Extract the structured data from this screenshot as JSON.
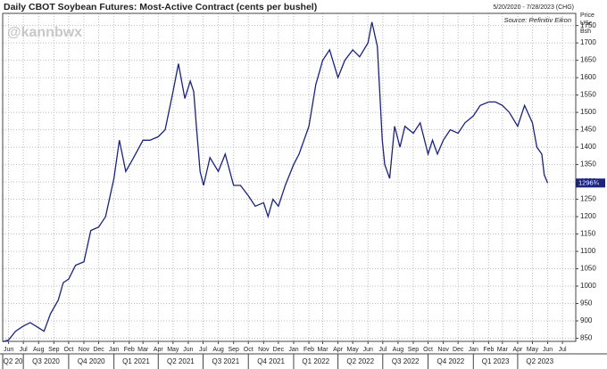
{
  "chart_data": {
    "type": "line",
    "title": "Daily CBOT Soybean Futures: Most-Active Contract (cents per bushel)",
    "subtitle": "5/20/2020 - 7/28/2023 (CHG)",
    "source": "Source: Refinitiv Eikon",
    "watermark": "@kannbwx",
    "y_axis_label": [
      "Price",
      "USc",
      "Bsh"
    ],
    "x": [
      "2020-05-20",
      "2020-06-01",
      "2020-06-15",
      "2020-07-01",
      "2020-07-15",
      "2020-08-01",
      "2020-08-12",
      "2020-08-25",
      "2020-09-10",
      "2020-09-20",
      "2020-10-01",
      "2020-10-15",
      "2020-11-01",
      "2020-11-15",
      "2020-12-01",
      "2020-12-15",
      "2021-01-01",
      "2021-01-12",
      "2021-01-25",
      "2021-02-10",
      "2021-03-01",
      "2021-03-15",
      "2021-04-01",
      "2021-04-15",
      "2021-05-01",
      "2021-05-12",
      "2021-05-25",
      "2021-06-05",
      "2021-06-12",
      "2021-06-18",
      "2021-06-25",
      "2021-07-02",
      "2021-07-15",
      "2021-08-01",
      "2021-08-15",
      "2021-09-01",
      "2021-09-15",
      "2021-10-01",
      "2021-10-15",
      "2021-11-01",
      "2021-11-10",
      "2021-11-20",
      "2021-12-01",
      "2021-12-15",
      "2022-01-01",
      "2022-01-12",
      "2022-02-01",
      "2022-02-15",
      "2022-03-01",
      "2022-03-15",
      "2022-04-01",
      "2022-04-15",
      "2022-05-01",
      "2022-05-15",
      "2022-06-01",
      "2022-06-09",
      "2022-06-20",
      "2022-06-30",
      "2022-07-05",
      "2022-07-15",
      "2022-07-25",
      "2022-08-05",
      "2022-08-15",
      "2022-09-01",
      "2022-09-15",
      "2022-10-01",
      "2022-10-10",
      "2022-10-20",
      "2022-11-01",
      "2022-11-15",
      "2022-12-01",
      "2022-12-15",
      "2023-01-01",
      "2023-01-15",
      "2023-02-01",
      "2023-02-15",
      "2023-03-01",
      "2023-03-15",
      "2023-04-01",
      "2023-04-15",
      "2023-05-01",
      "2023-05-10",
      "2023-05-20",
      "2023-05-25",
      "2023-06-01"
    ],
    "series": [
      {
        "color": "#1a237e",
        "values": [
          840,
          845,
          870,
          885,
          895,
          880,
          870,
          920,
          960,
          1010,
          1020,
          1060,
          1070,
          1160,
          1170,
          1200,
          1310,
          1420,
          1330,
          1370,
          1420,
          1420,
          1430,
          1450,
          1560,
          1640,
          1540,
          1590,
          1560,
          1450,
          1330,
          1290,
          1370,
          1330,
          1380,
          1290,
          1290,
          1260,
          1230,
          1240,
          1200,
          1250,
          1230,
          1290,
          1350,
          1380,
          1460,
          1580,
          1650,
          1680,
          1600,
          1650,
          1680,
          1660,
          1700,
          1760,
          1690,
          1420,
          1350,
          1310,
          1460,
          1400,
          1460,
          1440,
          1470,
          1380,
          1420,
          1380,
          1420,
          1450,
          1440,
          1470,
          1490,
          1520,
          1530,
          1530,
          1520,
          1500,
          1460,
          1520,
          1470,
          1400,
          1380,
          1320,
          1296.75
        ]
      }
    ],
    "last_value": {
      "value": 1296.75,
      "label": "1296¾"
    },
    "xlim": [
      "2020-05-20",
      "2023-07-28"
    ],
    "xticks": [
      {
        "value": "2020-06-01",
        "label": "Jun"
      },
      {
        "value": "2020-07-01",
        "label": "Jul"
      },
      {
        "value": "2020-08-01",
        "label": "Aug"
      },
      {
        "value": "2020-09-01",
        "label": "Sep"
      },
      {
        "value": "2020-10-01",
        "label": "Oct"
      },
      {
        "value": "2020-11-01",
        "label": "Nov"
      },
      {
        "value": "2020-12-01",
        "label": "Dec"
      },
      {
        "value": "2021-01-01",
        "label": "Jan"
      },
      {
        "value": "2021-02-01",
        "label": "Feb"
      },
      {
        "value": "2021-03-01",
        "label": "Mar"
      },
      {
        "value": "2021-04-01",
        "label": "Apr"
      },
      {
        "value": "2021-05-01",
        "label": "May"
      },
      {
        "value": "2021-06-01",
        "label": "Jun"
      },
      {
        "value": "2021-07-01",
        "label": "Jul"
      },
      {
        "value": "2021-08-01",
        "label": "Aug"
      },
      {
        "value": "2021-09-01",
        "label": "Sep"
      },
      {
        "value": "2021-10-01",
        "label": "Oct"
      },
      {
        "value": "2021-11-01",
        "label": "Nov"
      },
      {
        "value": "2021-12-01",
        "label": "Dec"
      },
      {
        "value": "2022-01-01",
        "label": "Jan"
      },
      {
        "value": "2022-02-01",
        "label": "Feb"
      },
      {
        "value": "2022-03-01",
        "label": "Mar"
      },
      {
        "value": "2022-04-01",
        "label": "Apr"
      },
      {
        "value": "2022-05-01",
        "label": "May"
      },
      {
        "value": "2022-06-01",
        "label": "Jun"
      },
      {
        "value": "2022-07-01",
        "label": "Jul"
      },
      {
        "value": "2022-08-01",
        "label": "Aug"
      },
      {
        "value": "2022-09-01",
        "label": "Sep"
      },
      {
        "value": "2022-10-01",
        "label": "Oct"
      },
      {
        "value": "2022-11-01",
        "label": "Nov"
      },
      {
        "value": "2022-12-01",
        "label": "Dec"
      },
      {
        "value": "2023-01-01",
        "label": "Jan"
      },
      {
        "value": "2023-02-01",
        "label": "Feb"
      },
      {
        "value": "2023-03-01",
        "label": "Mar"
      },
      {
        "value": "2023-04-01",
        "label": "Apr"
      },
      {
        "value": "2023-05-01",
        "label": "May"
      },
      {
        "value": "2023-06-01",
        "label": "Jun"
      },
      {
        "value": "2023-07-01",
        "label": "Jul"
      }
    ],
    "quarters": [
      {
        "value": "2020-04-01",
        "label": "Q2 20"
      },
      {
        "value": "2020-07-01",
        "label": "Q3 2020"
      },
      {
        "value": "2020-10-01",
        "label": "Q4 2020"
      },
      {
        "value": "2021-01-01",
        "label": "Q1 2021"
      },
      {
        "value": "2021-04-01",
        "label": "Q2 2021"
      },
      {
        "value": "2021-07-01",
        "label": "Q3 2021"
      },
      {
        "value": "2021-10-01",
        "label": "Q4 2021"
      },
      {
        "value": "2022-01-01",
        "label": "Q1 2022"
      },
      {
        "value": "2022-04-01",
        "label": "Q2 2022"
      },
      {
        "value": "2022-07-01",
        "label": "Q3 2022"
      },
      {
        "value": "2022-10-01",
        "label": "Q4 2022"
      },
      {
        "value": "2023-01-01",
        "label": "Q1 2023"
      },
      {
        "value": "2023-04-01",
        "label": "Q2 2023"
      }
    ],
    "ylim": [
      841,
      1785
    ],
    "yticks": [
      850,
      900,
      950,
      1000,
      1050,
      1100,
      1150,
      1200,
      1250,
      1300,
      1350,
      1400,
      1450,
      1500,
      1550,
      1600,
      1650,
      1700,
      1750
    ],
    "grid": true
  }
}
